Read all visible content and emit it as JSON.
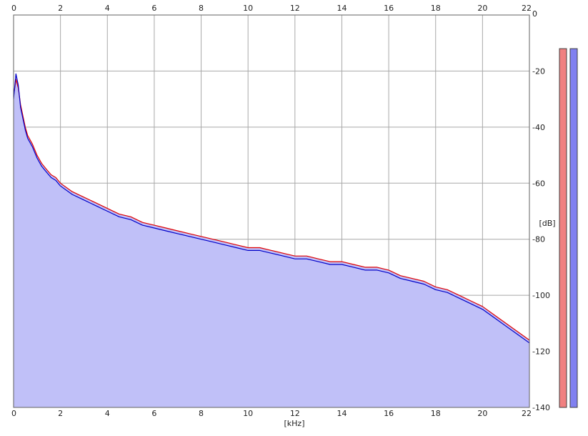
{
  "chart_data": {
    "type": "line",
    "title": "",
    "xlabel": "[kHz]",
    "ylabel": "[dB]",
    "xlim": [
      0,
      22
    ],
    "ylim": [
      -140,
      0
    ],
    "x_ticks": [
      0,
      2,
      4,
      6,
      8,
      10,
      12,
      14,
      16,
      18,
      20,
      22
    ],
    "y_ticks": [
      0,
      -20,
      -40,
      -60,
      -80,
      -100,
      -120,
      -140
    ],
    "grid": true,
    "colors": {
      "channel_1": "#e00000",
      "channel_2": "#0000c8",
      "fill": "#c0c0f8",
      "grid": "#a8a8a8",
      "meter_1": "#f08080",
      "meter_2": "#8080f0"
    },
    "series": [
      {
        "color": "#e00000",
        "x": [
          0.0,
          0.1,
          0.2,
          0.3,
          0.4,
          0.5,
          0.6,
          0.8,
          1.0,
          1.2,
          1.4,
          1.6,
          1.8,
          2.0,
          2.5,
          3.0,
          3.5,
          4.0,
          4.5,
          5.0,
          5.5,
          6.0,
          6.5,
          7.0,
          7.5,
          8.0,
          8.5,
          9.0,
          9.5,
          10.0,
          10.5,
          11.0,
          11.5,
          12.0,
          12.5,
          13.0,
          13.5,
          14.0,
          14.5,
          15.0,
          15.5,
          16.0,
          16.5,
          17.0,
          17.5,
          18.0,
          18.5,
          19.0,
          19.5,
          20.0,
          20.5,
          21.0,
          21.5,
          22.0
        ],
        "values": [
          -29,
          -23,
          -26,
          -32,
          -36,
          -40,
          -43,
          -46,
          -50,
          -53,
          -55,
          -57,
          -58,
          -60,
          -63,
          -65,
          -67,
          -69,
          -71,
          -72,
          -74,
          -75,
          -76,
          -77,
          -78,
          -79,
          -80,
          -81,
          -82,
          -83,
          -83,
          -84,
          -85,
          -86,
          -86,
          -87,
          -88,
          -88,
          -89,
          -90,
          -90,
          -91,
          -93,
          -94,
          -95,
          -97,
          -98,
          -100,
          -102,
          -104,
          -107,
          -110,
          -113,
          -116
        ]
      },
      {
        "color": "#0000c8",
        "x": [
          0.0,
          0.1,
          0.2,
          0.3,
          0.4,
          0.5,
          0.6,
          0.8,
          1.0,
          1.2,
          1.4,
          1.6,
          1.8,
          2.0,
          2.5,
          3.0,
          3.5,
          4.0,
          4.5,
          5.0,
          5.5,
          6.0,
          6.5,
          7.0,
          7.5,
          8.0,
          8.5,
          9.0,
          9.5,
          10.0,
          10.5,
          11.0,
          11.5,
          12.0,
          12.5,
          13.0,
          13.5,
          14.0,
          14.5,
          15.0,
          15.5,
          16.0,
          16.5,
          17.0,
          17.5,
          18.0,
          18.5,
          19.0,
          19.5,
          20.0,
          20.5,
          21.0,
          21.5,
          22.0
        ],
        "values": [
          -30,
          -21,
          -25,
          -33,
          -37,
          -41,
          -44,
          -47,
          -51,
          -54,
          -56,
          -58,
          -59,
          -61,
          -64,
          -66,
          -68,
          -70,
          -72,
          -73,
          -75,
          -76,
          -77,
          -78,
          -79,
          -80,
          -81,
          -82,
          -83,
          -84,
          -84,
          -85,
          -86,
          -87,
          -87,
          -88,
          -89,
          -89,
          -90,
          -91,
          -91,
          -92,
          -94,
          -95,
          -96,
          -98,
          -99,
          -101,
          -103,
          -105,
          -108,
          -111,
          -114,
          -117
        ]
      }
    ],
    "level_meters": [
      {
        "color": "#f08080",
        "value": -12
      },
      {
        "color": "#8080f0",
        "value": -12
      }
    ]
  }
}
